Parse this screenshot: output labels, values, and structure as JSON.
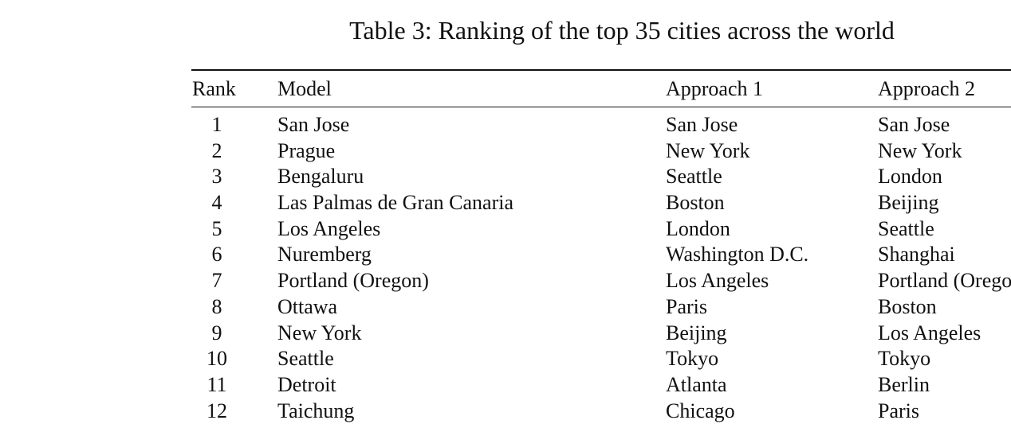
{
  "caption": "Table 3: Ranking of the top 35 cities across the world",
  "columns": {
    "rank": "Rank",
    "model": "Model",
    "approach1": "Approach 1",
    "approach2": "Approach 2"
  },
  "rows": [
    {
      "rank": "1",
      "model": "San Jose",
      "approach1": "San Jose",
      "approach2": "San Jose"
    },
    {
      "rank": "2",
      "model": "Prague",
      "approach1": "New York",
      "approach2": "New York"
    },
    {
      "rank": "3",
      "model": "Bengaluru",
      "approach1": "Seattle",
      "approach2": "London"
    },
    {
      "rank": "4",
      "model": "Las Palmas de Gran Canaria",
      "approach1": "Boston",
      "approach2": "Beijing"
    },
    {
      "rank": "5",
      "model": "Los Angeles",
      "approach1": "London",
      "approach2": "Seattle"
    },
    {
      "rank": "6",
      "model": "Nuremberg",
      "approach1": "Washington D.C.",
      "approach2": "Shanghai"
    },
    {
      "rank": "7",
      "model": "Portland (Oregon)",
      "approach1": "Los Angeles",
      "approach2": "Portland (Oregon)"
    },
    {
      "rank": "8",
      "model": "Ottawa",
      "approach1": "Paris",
      "approach2": "Boston"
    },
    {
      "rank": "9",
      "model": "New York",
      "approach1": "Beijing",
      "approach2": "Los Angeles"
    },
    {
      "rank": "10",
      "model": "Seattle",
      "approach1": "Tokyo",
      "approach2": "Tokyo"
    },
    {
      "rank": "11",
      "model": "Detroit",
      "approach1": "Atlanta",
      "approach2": "Berlin"
    },
    {
      "rank": "12",
      "model": "Taichung",
      "approach1": "Chicago",
      "approach2": "Paris"
    }
  ]
}
